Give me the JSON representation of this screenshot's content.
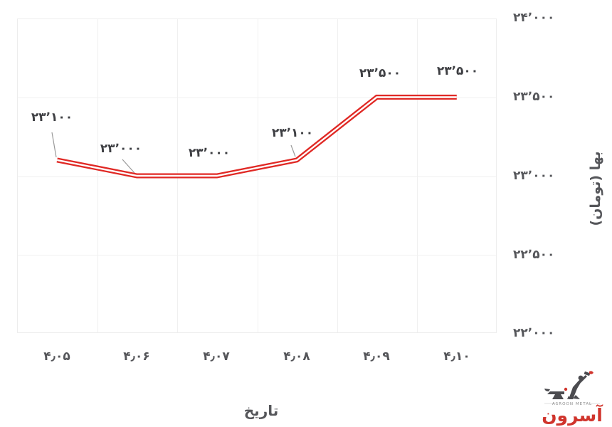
{
  "chart_data": {
    "type": "line",
    "title": "",
    "xlabel": "تاریخ",
    "ylabel": "بها (تومان)",
    "categories_display": [
      "۴٫۰۵",
      "۴٫۰۶",
      "۴٫۰۷",
      "۴٫۰۸",
      "۴٫۰۹",
      "۴٫۱۰"
    ],
    "categories": [
      4.05,
      4.06,
      4.07,
      4.08,
      4.09,
      4.1
    ],
    "series": [
      {
        "name": "بها (تومان)",
        "values": [
          23100,
          23000,
          23000,
          23100,
          23500,
          23500
        ]
      }
    ],
    "values": [
      23100,
      23000,
      23000,
      23100,
      23500,
      23500
    ],
    "point_labels": [
      "۲۳٬۱۰۰",
      "۲۳٬۰۰۰",
      "۲۳٬۰۰۰",
      "۲۳٬۱۰۰",
      "۲۳٬۵۰۰",
      "۲۳٬۵۰۰"
    ],
    "ylim": [
      22000,
      24000
    ],
    "y_ticks": [
      24000,
      23500,
      23000,
      22500,
      22000
    ],
    "y_tick_labels": [
      "۲۴٬۰۰۰",
      "۲۳٬۵۰۰",
      "۲۳٬۰۰۰",
      "۲۲٬۵۰۰",
      "۲۲٬۰۰۰"
    ],
    "grid": true,
    "legend_position": "none",
    "line_color": "#e02824",
    "line_style": "double red stroke with white core",
    "label_leader_points": [
      0,
      1,
      3
    ]
  },
  "branding": {
    "caption": "ASROON METAL",
    "wordmark": "آسرون",
    "red": "#d0342c",
    "dark": "#4b4b4f"
  },
  "colors": {
    "background": "#ffffff",
    "grid": "#f0f0f0",
    "plot_border": "#ededed",
    "tick_text": "#55565a",
    "data_label_text": "#3e3f43",
    "leader_line": "#9a9a9a"
  }
}
